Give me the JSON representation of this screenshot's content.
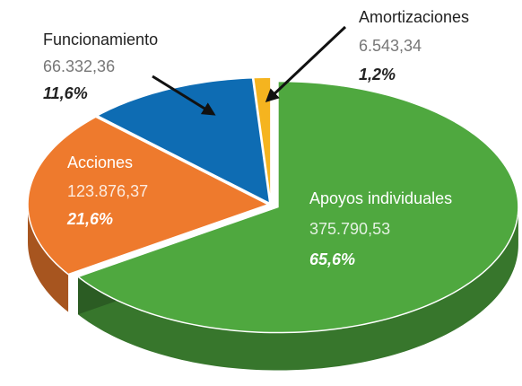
{
  "chart_data": {
    "type": "pie",
    "categories": [
      "Apoyos individuales",
      "Acciones",
      "Funcionamiento",
      "Amortizaciones"
    ],
    "values": [
      375790.53,
      123876.37,
      66332.36,
      6543.34
    ],
    "value_labels": [
      "375.790,53",
      "123.876,37",
      "66.332,36",
      "6.543,34"
    ],
    "shares": [
      65.6,
      21.6,
      11.6,
      1.2
    ],
    "share_labels": [
      "65,6%",
      "21,6%",
      "11,6%",
      "1,2%"
    ],
    "colors": [
      "#4fa83f",
      "#ee7a2d",
      "#0e6cb3",
      "#f5b41f"
    ]
  }
}
